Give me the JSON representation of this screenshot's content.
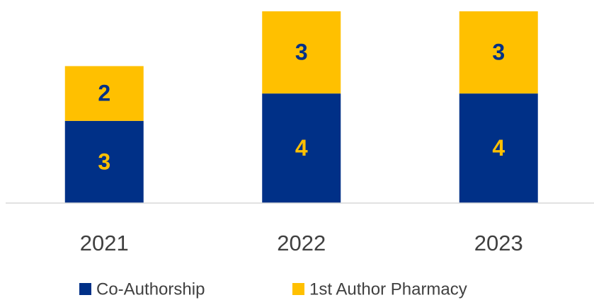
{
  "chart_data": {
    "type": "stacked_bar",
    "categories": [
      "2021",
      "2022",
      "2023"
    ],
    "series": [
      {
        "name": "Co-Authorship",
        "color": "#003087",
        "values": [
          3,
          4,
          4
        ]
      },
      {
        "name": "1st Author Pharmacy",
        "color": "#FFC000",
        "values": [
          2,
          3,
          3
        ]
      }
    ],
    "ylim": [
      0,
      7
    ]
  }
}
